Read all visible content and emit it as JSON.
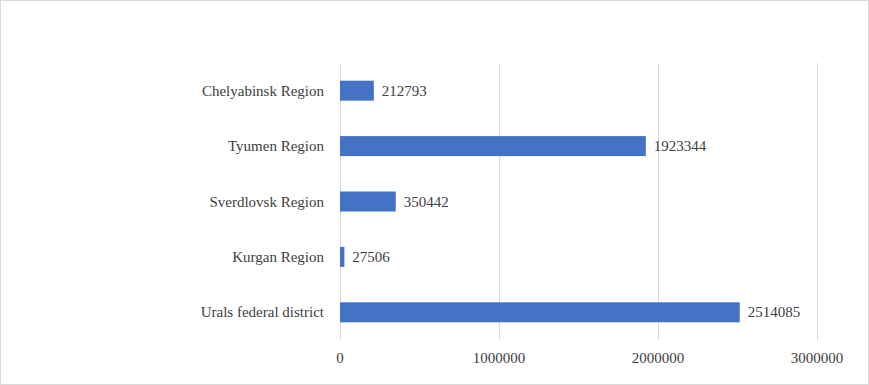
{
  "chart_data": {
    "type": "bar",
    "orientation": "horizontal",
    "categories": [
      "Urals federal district",
      "Kurgan Region",
      "Sverdlovsk Region",
      "Tyumen Region",
      "Chelyabinsk Region"
    ],
    "values": [
      2514085,
      27506,
      350442,
      1923344,
      212793
    ],
    "color": "#4472c4",
    "xlim": [
      0,
      3000000
    ],
    "xticks": [
      0,
      1000000,
      2000000,
      3000000
    ],
    "grid": true,
    "data_labels": true
  }
}
